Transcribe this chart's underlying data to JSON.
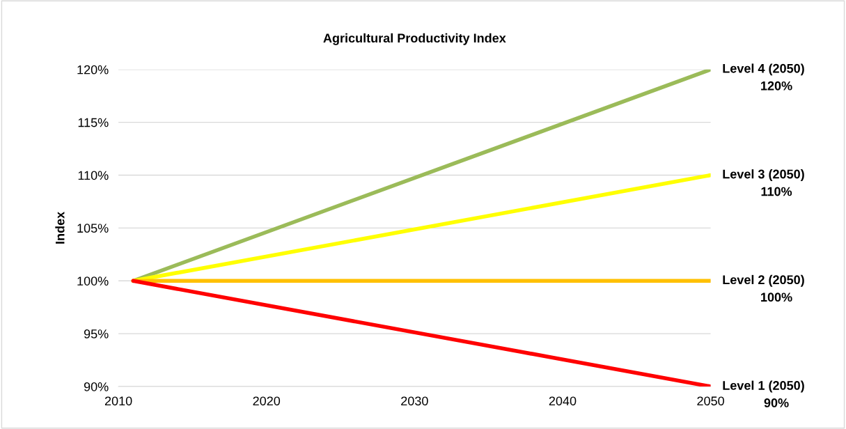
{
  "chart_data": {
    "type": "line",
    "title": "Agricultural Productivity Index",
    "ylabel": "Index",
    "x": [
      2011,
      2050
    ],
    "series": [
      {
        "name": "Level 4 (2050)",
        "color": "#9bbb59",
        "values": [
          100,
          120
        ]
      },
      {
        "name": "Level 3 (2050)",
        "color": "#ffff00",
        "values": [
          100,
          110
        ]
      },
      {
        "name": "Level 2 (2050)",
        "color": "#ffc000",
        "values": [
          100,
          100
        ]
      },
      {
        "name": "Level 1 (2050)",
        "color": "#ff0000",
        "values": [
          100,
          90
        ]
      }
    ],
    "annotations": [
      "120%",
      "110%",
      "100%",
      "90%"
    ],
    "xlim": [
      2010,
      2050
    ],
    "xticks": [
      2010,
      2020,
      2030,
      2040,
      2050
    ],
    "ylim": [
      90,
      120
    ],
    "yticks": [
      {
        "value": 90,
        "label": "90%"
      },
      {
        "value": 95,
        "label": "95%"
      },
      {
        "value": 100,
        "label": "100%"
      },
      {
        "value": 105,
        "label": "105%"
      },
      {
        "value": 110,
        "label": "110%"
      },
      {
        "value": 115,
        "label": "115%"
      },
      {
        "value": 120,
        "label": "120%"
      }
    ],
    "grid": "y",
    "legend": false,
    "marker": "none",
    "line_style": "solid"
  }
}
